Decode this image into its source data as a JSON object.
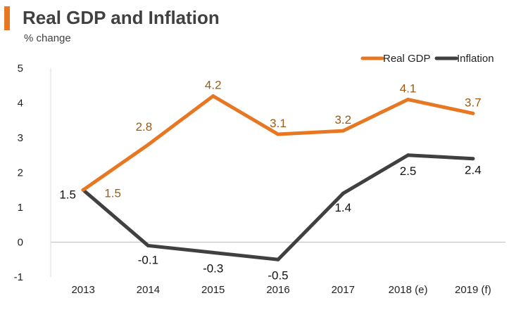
{
  "header": {
    "title": "Real GDP and Inflation",
    "subtitle": "% change",
    "accent_color": "#e87722"
  },
  "chart_data": {
    "type": "line",
    "title": "Real GDP and Inflation",
    "subtitle": "% change",
    "xlabel": "",
    "ylabel": "",
    "categories": [
      "2013",
      "2014",
      "2015",
      "2016",
      "2017",
      "2018 (e)",
      "2019 (f)"
    ],
    "ylim": [
      -1,
      5
    ],
    "yticks": [
      5,
      4,
      3,
      2,
      1,
      0,
      -1
    ],
    "grid": false,
    "legend_position": "top-right",
    "series": [
      {
        "name": "Real GDP",
        "color": "#e87722",
        "label_color": "#9c5a14",
        "values": [
          1.5,
          2.8,
          4.2,
          3.1,
          3.2,
          4.1,
          3.7
        ],
        "labels": [
          "1.5",
          "2.8",
          "4.2",
          "3.1",
          "3.2",
          "4.1",
          "3.7"
        ]
      },
      {
        "name": "Inflation",
        "color": "#404040",
        "label_color": "#111111",
        "values": [
          1.5,
          -0.1,
          -0.3,
          -0.5,
          1.4,
          2.5,
          2.4
        ],
        "labels": [
          "1.5",
          "-0.1",
          "-0.3",
          "-0.5",
          "1.4",
          "2.5",
          "2.4"
        ]
      }
    ]
  }
}
